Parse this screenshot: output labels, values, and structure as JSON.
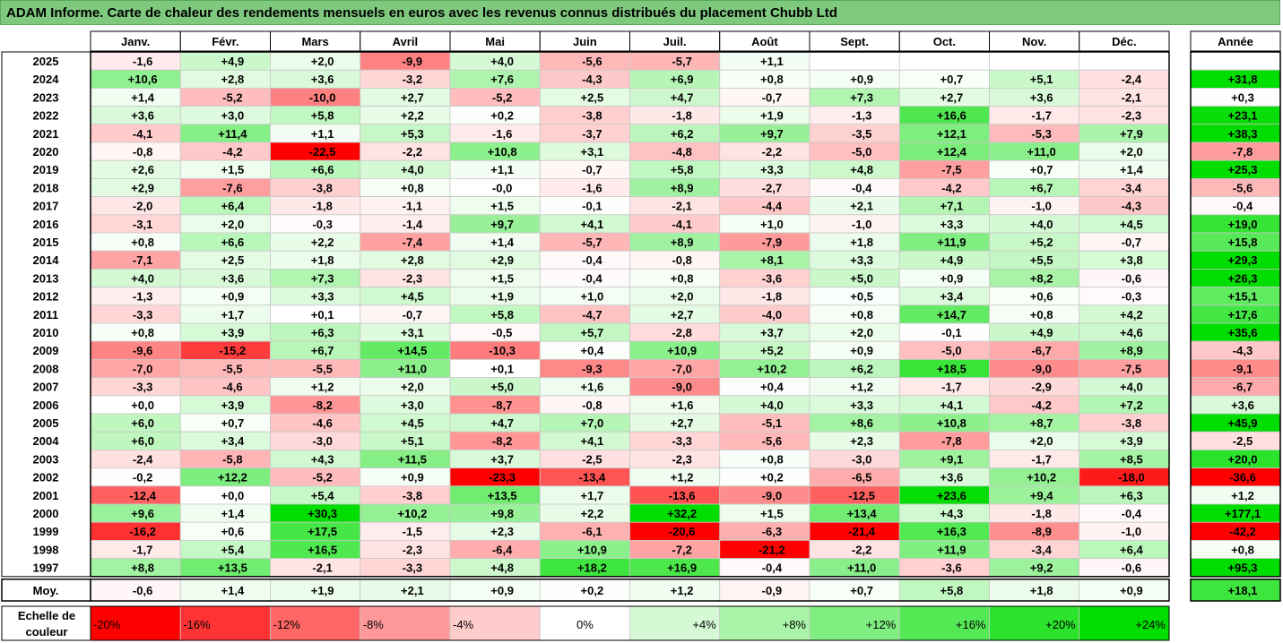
{
  "title": "ADAM Informe. Carte de chaleur des rendements mensuels en euros avec les revenus connus distribués du placement Chubb Ltd",
  "chart_data": {
    "type": "heatmap",
    "months": [
      "Janv.",
      "Févr.",
      "Mars",
      "Avril",
      "Mai",
      "Juin",
      "Juil.",
      "Août",
      "Sept.",
      "Oct.",
      "Nov.",
      "Déc."
    ],
    "year_header": "Année",
    "avg_label": "Moy.",
    "rows": [
      {
        "year": "2025",
        "values": [
          "-1,6",
          "+4,9",
          "+2,0",
          "-9,9",
          "+4,0",
          "-5,6",
          "-5,7",
          "+1,1",
          "",
          "",
          "",
          ""
        ],
        "annual": ""
      },
      {
        "year": "2024",
        "values": [
          "+10,6",
          "+2,8",
          "+3,6",
          "-3,2",
          "+7,6",
          "-4,3",
          "+6,9",
          "+0,8",
          "+0,9",
          "+0,7",
          "+5,1",
          "-2,4"
        ],
        "annual": "+31,8"
      },
      {
        "year": "2023",
        "values": [
          "+1,4",
          "-5,2",
          "-10,0",
          "+2,7",
          "-5,2",
          "+2,5",
          "+4,7",
          "-0,7",
          "+7,3",
          "+2,7",
          "+3,6",
          "-2,1"
        ],
        "annual": "+0,3"
      },
      {
        "year": "2022",
        "values": [
          "+3,6",
          "+3,0",
          "+5,8",
          "+2,2",
          "+0,2",
          "-3,8",
          "-1,8",
          "+1,9",
          "-1,3",
          "+16,6",
          "-1,7",
          "-2,3"
        ],
        "annual": "+23,1"
      },
      {
        "year": "2021",
        "values": [
          "-4,1",
          "+11,4",
          "+1,1",
          "+5,3",
          "-1,6",
          "-3,7",
          "+6,2",
          "+9,7",
          "-3,5",
          "+12,1",
          "-5,3",
          "+7,9"
        ],
        "annual": "+38,3"
      },
      {
        "year": "2020",
        "values": [
          "-0,8",
          "-4,2",
          "-22,5",
          "-2,2",
          "+10,8",
          "+3,1",
          "-4,8",
          "-2,2",
          "-5,0",
          "+12,4",
          "+11,0",
          "+2,0"
        ],
        "annual": "-7,8"
      },
      {
        "year": "2019",
        "values": [
          "+2,6",
          "+1,5",
          "+6,6",
          "+4,0",
          "+1,1",
          "-0,7",
          "+5,8",
          "+3,3",
          "+4,8",
          "-7,5",
          "+0,7",
          "+1,4"
        ],
        "annual": "+25,3"
      },
      {
        "year": "2018",
        "values": [
          "+2,9",
          "-7,6",
          "-3,8",
          "+0,8",
          "-0,0",
          "-1,6",
          "+8,9",
          "-2,7",
          "-0,4",
          "-4,2",
          "+6,7",
          "-3,4"
        ],
        "annual": "-5,6"
      },
      {
        "year": "2017",
        "values": [
          "-2,0",
          "+6,4",
          "-1,8",
          "-1,1",
          "+1,5",
          "-0,1",
          "-2,1",
          "-4,4",
          "+2,1",
          "+7,1",
          "-1,0",
          "-4,3"
        ],
        "annual": "-0,4"
      },
      {
        "year": "2016",
        "values": [
          "-3,1",
          "+2,0",
          "-0,3",
          "-1,4",
          "+9,7",
          "+4,1",
          "-4,1",
          "+1,0",
          "-1,0",
          "+3,3",
          "+4,0",
          "+4,5"
        ],
        "annual": "+19,0"
      },
      {
        "year": "2015",
        "values": [
          "+0,8",
          "+6,6",
          "+2,2",
          "-7,4",
          "+1,4",
          "-5,7",
          "+8,9",
          "-7,9",
          "+1,8",
          "+11,9",
          "+5,2",
          "-0,7"
        ],
        "annual": "+15,8"
      },
      {
        "year": "2014",
        "values": [
          "-7,1",
          "+2,5",
          "+1,8",
          "+2,8",
          "+2,9",
          "-0,4",
          "-0,8",
          "+8,1",
          "+3,3",
          "+4,9",
          "+5,5",
          "+3,8"
        ],
        "annual": "+29,3"
      },
      {
        "year": "2013",
        "values": [
          "+4,0",
          "+3,6",
          "+7,3",
          "-2,3",
          "+1,5",
          "-0,4",
          "+0,8",
          "-3,6",
          "+5,0",
          "+0,9",
          "+8,2",
          "-0,6"
        ],
        "annual": "+26,3"
      },
      {
        "year": "2012",
        "values": [
          "-1,3",
          "+0,9",
          "+3,3",
          "+4,5",
          "+1,9",
          "+1,0",
          "+2,0",
          "-1,8",
          "+0,5",
          "+3,4",
          "+0,6",
          "-0,3"
        ],
        "annual": "+15,1"
      },
      {
        "year": "2011",
        "values": [
          "-3,3",
          "+1,7",
          "+0,1",
          "-0,7",
          "+5,8",
          "-4,7",
          "+2,7",
          "-4,0",
          "+0,8",
          "+14,7",
          "+0,8",
          "+4,2"
        ],
        "annual": "+17,6"
      },
      {
        "year": "2010",
        "values": [
          "+0,8",
          "+3,9",
          "+6,3",
          "+3,1",
          "-0,5",
          "+5,7",
          "-2,8",
          "+3,7",
          "+2,0",
          "-0,1",
          "+4,9",
          "+4,6"
        ],
        "annual": "+35,6"
      },
      {
        "year": "2009",
        "values": [
          "-9,6",
          "-15,2",
          "+6,7",
          "+14,5",
          "-10,3",
          "+0,4",
          "+10,9",
          "+5,2",
          "+0,9",
          "-5,0",
          "-6,7",
          "+8,9"
        ],
        "annual": "-4,3"
      },
      {
        "year": "2008",
        "values": [
          "-7,0",
          "-5,5",
          "-5,5",
          "+11,0",
          "+0,1",
          "-9,3",
          "-7,0",
          "+10,2",
          "+6,2",
          "+18,5",
          "-9,0",
          "-7,5"
        ],
        "annual": "-9,1"
      },
      {
        "year": "2007",
        "values": [
          "-3,3",
          "-4,6",
          "+1,2",
          "+2,0",
          "+5,0",
          "+1,6",
          "-9,0",
          "+0,4",
          "+1,2",
          "-1,7",
          "-2,9",
          "+4,0"
        ],
        "annual": "-6,7"
      },
      {
        "year": "2006",
        "values": [
          "+0,0",
          "+3,9",
          "-8,2",
          "+3,0",
          "-8,7",
          "-0,8",
          "+1,6",
          "+4,0",
          "+3,3",
          "+4,1",
          "-4,2",
          "+7,2"
        ],
        "annual": "+3,6"
      },
      {
        "year": "2005",
        "values": [
          "+6,0",
          "+0,7",
          "-4,6",
          "+4,5",
          "+4,7",
          "+7,0",
          "+2,7",
          "-5,1",
          "+8,6",
          "+10,8",
          "+8,7",
          "-3,8"
        ],
        "annual": "+45,9"
      },
      {
        "year": "2004",
        "values": [
          "+6,0",
          "+3,4",
          "-3,0",
          "+5,1",
          "-8,2",
          "+4,1",
          "-3,3",
          "-5,6",
          "+2,3",
          "-7,8",
          "+2,0",
          "+3,9"
        ],
        "annual": "-2,5"
      },
      {
        "year": "2003",
        "values": [
          "-2,4",
          "-5,8",
          "+4,3",
          "+11,5",
          "+3,7",
          "-2,5",
          "-2,3",
          "+0,8",
          "-3,0",
          "+9,1",
          "-1,7",
          "+8,5"
        ],
        "annual": "+20,0"
      },
      {
        "year": "2002",
        "values": [
          "-0,2",
          "+12,2",
          "-5,2",
          "+0,9",
          "-23,3",
          "-13,4",
          "+1,2",
          "+0,2",
          "-6,5",
          "+3,6",
          "+10,2",
          "-18,0"
        ],
        "annual": "-36,6"
      },
      {
        "year": "2001",
        "values": [
          "-12,4",
          "+0,0",
          "+5,4",
          "-3,8",
          "+13,5",
          "+1,7",
          "-13,6",
          "-9,0",
          "-12,5",
          "+23,6",
          "+9,4",
          "+6,3"
        ],
        "annual": "+1,2"
      },
      {
        "year": "2000",
        "values": [
          "+9,6",
          "+1,4",
          "+30,3",
          "+10,2",
          "+9,8",
          "+2,2",
          "+32,2",
          "+1,5",
          "+13,4",
          "+4,3",
          "-1,8",
          "-0,4"
        ],
        "annual": "+177,1"
      },
      {
        "year": "1999",
        "values": [
          "-16,2",
          "+0,6",
          "+17,5",
          "-1,5",
          "+2,3",
          "-6,1",
          "-20,6",
          "-6,3",
          "-21,4",
          "+16,3",
          "-8,9",
          "-1,0"
        ],
        "annual": "-42,2"
      },
      {
        "year": "1998",
        "values": [
          "-1,7",
          "+5,4",
          "+16,5",
          "-2,3",
          "-6,4",
          "+10,9",
          "-7,2",
          "-21,2",
          "-2,2",
          "+11,9",
          "-3,4",
          "+6,4"
        ],
        "annual": "+0,8"
      },
      {
        "year": "1997",
        "values": [
          "+8,8",
          "+13,5",
          "-2,1",
          "-3,3",
          "+4,8",
          "+18,2",
          "+16,9",
          "-0,4",
          "+11,0",
          "-3,6",
          "+9,2",
          "-0,6"
        ],
        "annual": "+95,3"
      }
    ],
    "averages": [
      "-0,6",
      "+1,4",
      "+1,9",
      "+2,1",
      "+0,9",
      "+0,2",
      "+1,2",
      "-0,9",
      "+0,7",
      "+5,8",
      "+1,8",
      "+0,9"
    ],
    "average_annual": "+18,1",
    "color_scale": {
      "label": "Echelle de couleur",
      "steps": [
        "-20%",
        "-16%",
        "-12%",
        "-8%",
        "-4%",
        "0%",
        "+4%",
        "+8%",
        "+12%",
        "+16%",
        "+20%",
        "+24%"
      ],
      "step_values": [
        -20,
        -16,
        -12,
        -8,
        -4,
        0,
        4,
        8,
        12,
        16,
        20,
        24
      ],
      "negative_color": "#ff0000",
      "positive_color": "#00dd00",
      "neutral_color": "#ffffff"
    }
  }
}
